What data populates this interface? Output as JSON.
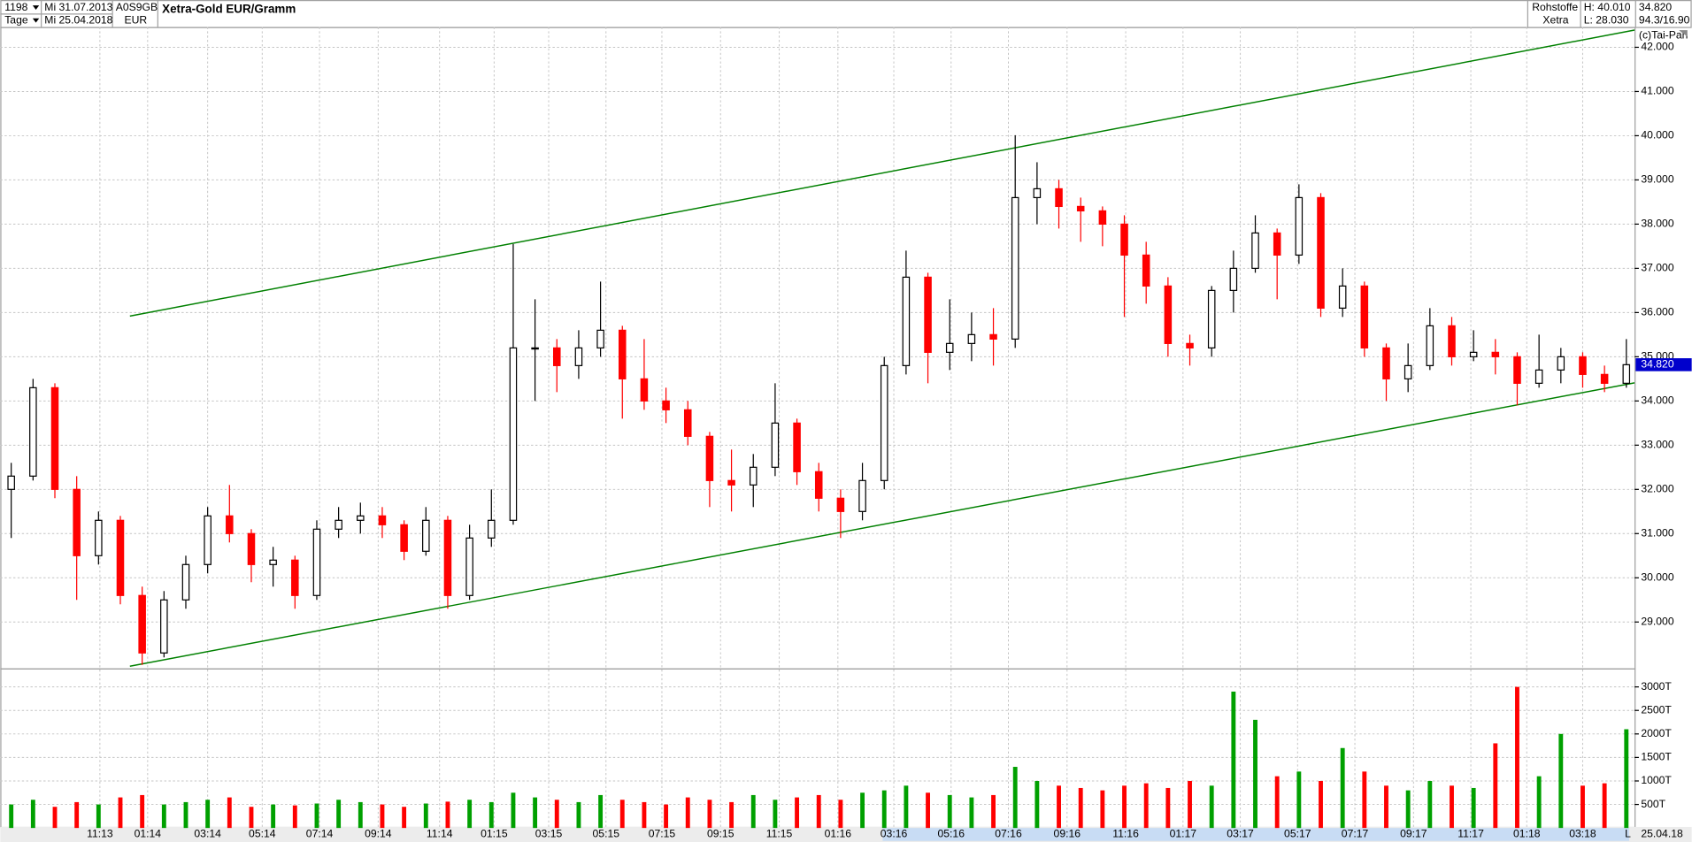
{
  "header": {
    "bars": "1198",
    "period": "Tage",
    "start": "Mi 31.07.2013",
    "end": "Mi 25.04.2018",
    "isin": "A0S9GB",
    "currency": "EUR",
    "sector": "Rohstoffe",
    "exchange": "Xetra",
    "high": "H: 40.010",
    "low": "L: 28.030",
    "ratio": "94.3/16.90",
    "copyright": "(c)Tai-Pan",
    "date": "25.04.18",
    "mode": "L"
  },
  "chart_data": {
    "type": "candlestick",
    "title": "Xetra-Gold EUR/Gramm",
    "x": [
      8,
      24,
      40,
      56,
      72,
      88,
      104,
      120,
      136,
      152,
      168,
      184,
      200,
      216,
      232,
      248,
      264,
      280,
      296,
      312,
      328,
      344,
      360,
      376,
      392,
      408,
      424,
      440,
      456,
      472,
      488,
      504,
      520,
      536,
      552,
      568,
      584,
      600,
      616,
      632,
      648,
      664,
      680,
      696,
      712,
      728,
      744,
      760,
      776,
      792,
      808,
      824,
      840,
      856,
      872,
      888,
      904,
      920,
      936,
      952,
      968,
      984,
      1000,
      1016,
      1032,
      1048,
      1064,
      1080,
      1096,
      1112,
      1128,
      1144,
      1160,
      1176,
      1192
    ],
    "open": [
      32.0,
      32.3,
      34.3,
      32.0,
      30.5,
      31.3,
      29.6,
      28.3,
      29.5,
      30.3,
      31.4,
      31.0,
      30.3,
      30.4,
      29.6,
      31.1,
      31.3,
      31.4,
      31.2,
      30.6,
      31.3,
      29.6,
      30.9,
      31.3,
      35.2,
      35.2,
      34.8,
      35.2,
      35.6,
      34.5,
      34.0,
      33.8,
      33.2,
      32.2,
      32.1,
      32.5,
      33.5,
      32.4,
      31.8,
      31.5,
      32.2,
      34.8,
      36.8,
      35.1,
      35.3,
      35.5,
      35.4,
      38.6,
      38.8,
      38.4,
      38.3,
      38.0,
      37.3,
      36.6,
      35.3,
      35.2,
      36.5,
      37.0,
      37.8,
      37.3,
      38.6,
      36.1,
      36.6,
      35.2,
      34.5,
      34.8,
      35.7,
      35.0,
      35.1,
      35.0,
      34.4,
      34.7,
      35.0,
      34.6,
      34.4
    ],
    "high": [
      32.6,
      34.5,
      34.4,
      32.3,
      31.5,
      31.4,
      29.8,
      29.7,
      30.5,
      31.6,
      32.1,
      31.1,
      30.7,
      30.5,
      31.3,
      31.6,
      31.7,
      31.6,
      31.3,
      31.6,
      31.4,
      31.2,
      32.0,
      37.55,
      36.3,
      35.4,
      35.6,
      36.7,
      35.7,
      35.4,
      34.3,
      34.0,
      33.3,
      32.9,
      32.8,
      34.4,
      33.6,
      32.6,
      32.0,
      32.6,
      35.0,
      37.4,
      36.9,
      36.3,
      36.0,
      36.1,
      40.01,
      39.4,
      39.0,
      38.6,
      38.4,
      38.2,
      37.6,
      36.8,
      35.5,
      36.6,
      37.4,
      38.2,
      37.9,
      38.9,
      38.7,
      37.0,
      36.7,
      35.3,
      35.3,
      36.1,
      35.9,
      35.6,
      35.4,
      35.1,
      35.5,
      35.2,
      35.1,
      34.8,
      35.4
    ],
    "low": [
      30.9,
      32.2,
      31.8,
      29.5,
      30.3,
      29.4,
      28.03,
      28.2,
      29.3,
      30.1,
      30.8,
      29.9,
      29.8,
      29.3,
      29.5,
      30.9,
      31.0,
      30.9,
      30.4,
      30.5,
      29.3,
      29.5,
      30.7,
      31.2,
      34.0,
      34.2,
      34.5,
      35.0,
      33.6,
      33.8,
      33.5,
      33.0,
      31.6,
      31.5,
      31.6,
      32.3,
      32.1,
      31.5,
      30.9,
      31.3,
      32.0,
      34.6,
      34.4,
      34.7,
      34.9,
      34.8,
      35.2,
      38.0,
      37.9,
      37.6,
      37.5,
      35.9,
      36.2,
      35.0,
      34.8,
      35.0,
      36.0,
      36.9,
      36.3,
      37.1,
      35.9,
      35.9,
      35.0,
      34.0,
      34.2,
      34.7,
      34.8,
      34.9,
      34.6,
      33.9,
      34.3,
      34.4,
      34.3,
      34.2,
      34.3
    ],
    "close": [
      32.3,
      34.3,
      32.0,
      30.5,
      31.3,
      29.6,
      28.3,
      29.5,
      30.3,
      31.4,
      31.0,
      30.3,
      30.4,
      29.6,
      31.1,
      31.3,
      31.4,
      31.2,
      30.6,
      31.3,
      29.6,
      30.9,
      31.3,
      35.2,
      35.2,
      34.8,
      35.2,
      35.6,
      34.5,
      34.0,
      33.8,
      33.2,
      32.2,
      32.1,
      32.5,
      33.5,
      32.4,
      31.8,
      31.5,
      32.2,
      34.8,
      36.8,
      35.1,
      35.3,
      35.5,
      35.4,
      38.6,
      38.8,
      38.4,
      38.3,
      38.0,
      37.3,
      36.6,
      35.3,
      35.2,
      36.5,
      37.0,
      37.8,
      37.3,
      38.6,
      36.1,
      36.6,
      35.2,
      34.5,
      34.8,
      35.7,
      35.0,
      35.1,
      35.0,
      34.4,
      34.7,
      35.0,
      34.6,
      34.4,
      34.82
    ],
    "up_color": "#000000",
    "down_color": "#ff0000",
    "xlim": [
      0,
      1198
    ],
    "ylim": [
      27.95,
      42.46
    ],
    "xticks": [
      {
        "value": 73,
        "label": "11:13"
      },
      {
        "value": 108,
        "label": "01:14"
      },
      {
        "value": 152,
        "label": "03:14"
      },
      {
        "value": 192,
        "label": "05:14"
      },
      {
        "value": 234,
        "label": "07:14"
      },
      {
        "value": 277,
        "label": "09:14"
      },
      {
        "value": 322,
        "label": "11:14"
      },
      {
        "value": 362,
        "label": "01:15"
      },
      {
        "value": 402,
        "label": "03:15"
      },
      {
        "value": 444,
        "label": "05:15"
      },
      {
        "value": 485,
        "label": "07:15"
      },
      {
        "value": 528,
        "label": "09:15"
      },
      {
        "value": 571,
        "label": "11:15"
      },
      {
        "value": 614,
        "label": "01:16"
      },
      {
        "value": 655,
        "label": "03:16"
      },
      {
        "value": 697,
        "label": "05:16"
      },
      {
        "value": 739,
        "label": "07:16"
      },
      {
        "value": 782,
        "label": "09:16"
      },
      {
        "value": 825,
        "label": "11:16"
      },
      {
        "value": 867,
        "label": "01:17"
      },
      {
        "value": 909,
        "label": "03:17"
      },
      {
        "value": 951,
        "label": "05:17"
      },
      {
        "value": 993,
        "label": "07:17"
      },
      {
        "value": 1036,
        "label": "09:17"
      },
      {
        "value": 1078,
        "label": "11:17"
      },
      {
        "value": 1119,
        "label": "01:18"
      },
      {
        "value": 1160,
        "label": "03:18"
      }
    ],
    "yticks": [
      {
        "value": 29,
        "label": "29.000"
      },
      {
        "value": 30,
        "label": "30.000"
      },
      {
        "value": 31,
        "label": "31.000"
      },
      {
        "value": 32,
        "label": "32.000"
      },
      {
        "value": 33,
        "label": "33.000"
      },
      {
        "value": 34,
        "label": "34.000"
      },
      {
        "value": 35,
        "label": "35.000"
      },
      {
        "value": 36,
        "label": "36.000"
      },
      {
        "value": 37,
        "label": "37.000"
      },
      {
        "value": 38,
        "label": "38.000"
      },
      {
        "value": 39,
        "label": "39.000"
      },
      {
        "value": 40,
        "label": "40.000"
      },
      {
        "value": 41,
        "label": "41.000"
      },
      {
        "value": 42,
        "label": "42.000"
      }
    ],
    "grid": true,
    "last": {
      "value": 34.82,
      "label": "34.820",
      "color": "#0000cc"
    },
    "trendlines": [
      {
        "color": "#008000",
        "x": [
          95,
          1198
        ],
        "y": [
          35.92,
          42.39
        ]
      },
      {
        "color": "#008000",
        "x": [
          95,
          1198
        ],
        "y": [
          28.0,
          34.41
        ]
      }
    ],
    "volume": {
      "type": "bar",
      "up_color": "#00a000",
      "down_color": "#ff0000",
      "values": [
        500,
        600,
        450,
        550,
        500,
        650,
        700,
        500,
        550,
        600,
        650,
        450,
        500,
        480,
        520,
        600,
        550,
        500,
        450,
        520,
        560,
        600,
        550,
        750,
        650,
        600,
        550,
        700,
        600,
        550,
        500,
        650,
        600,
        550,
        700,
        600,
        650,
        700,
        600,
        750,
        800,
        900,
        750,
        700,
        650,
        700,
        1300,
        1000,
        900,
        850,
        800,
        900,
        950,
        850,
        1000,
        900,
        2900,
        2300,
        1100,
        1200,
        1000,
        1700,
        1200,
        900,
        800,
        1000,
        900,
        850,
        1800,
        3000,
        1100,
        2000,
        900,
        950,
        2100
      ],
      "ylim": [
        0,
        3370
      ],
      "yticks": [
        {
          "value": 500,
          "label": "500T"
        },
        {
          "value": 1000,
          "label": "1000T"
        },
        {
          "value": 1500,
          "label": "1500T"
        },
        {
          "value": 2000,
          "label": "2000T"
        },
        {
          "value": 2500,
          "label": "2500T"
        },
        {
          "value": 3000,
          "label": "3000T"
        }
      ]
    }
  }
}
